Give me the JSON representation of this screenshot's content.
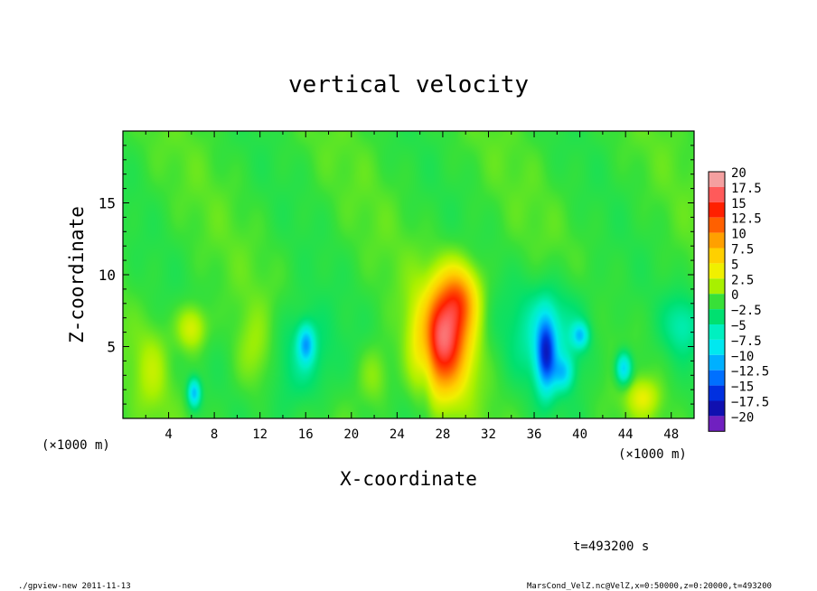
{
  "chart_data": {
    "type": "heatmap",
    "title": "vertical velocity",
    "xlabel": "X-coordinate",
    "ylabel": "Z-coordinate",
    "x_unit_left": "(×1000 m)",
    "x_unit_right": "(×1000 m)",
    "xlim": [
      0,
      50
    ],
    "ylim": [
      0,
      20
    ],
    "x_ticks": [
      4,
      8,
      12,
      16,
      20,
      24,
      28,
      32,
      36,
      40,
      44,
      48
    ],
    "y_ticks": [
      5,
      10,
      15
    ],
    "colorbar": {
      "levels": [
        "20",
        "17.5",
        "15",
        "12.5",
        "10",
        "7.5",
        "5",
        "2.5",
        "0",
        "-2.5",
        "-5",
        "-7.5",
        "-10",
        "-12.5",
        "-15",
        "-17.5",
        "-20"
      ],
      "colors": [
        "#f4a0a0",
        "#ff5a5a",
        "#ff2000",
        "#ff6000",
        "#ffa000",
        "#ffd000",
        "#f0f000",
        "#a8f000",
        "#38e038",
        "#00e070",
        "#00f0c0",
        "#00e8f0",
        "#00b0ff",
        "#0070ff",
        "#0030e0",
        "#1010b0",
        "#7020c0"
      ]
    },
    "features": [
      {
        "x": 28.0,
        "z": 5.5,
        "value": 17,
        "sx": 1.6,
        "sz": 2.6
      },
      {
        "x": 29.5,
        "z": 8.5,
        "value": 8,
        "sx": 1.2,
        "sz": 1.6
      },
      {
        "x": 6.0,
        "z": 6.3,
        "value": 5,
        "sx": 0.9,
        "sz": 1.1
      },
      {
        "x": 6.2,
        "z": 1.8,
        "value": -9,
        "sx": 0.4,
        "sz": 0.7
      },
      {
        "x": 37.0,
        "z": 4.5,
        "value": -12,
        "sx": 0.6,
        "sz": 1.8
      },
      {
        "x": 38.5,
        "z": 3.2,
        "value": -6,
        "sx": 0.6,
        "sz": 0.8
      },
      {
        "x": 43.8,
        "z": 3.5,
        "value": -9,
        "sx": 0.5,
        "sz": 0.8
      },
      {
        "x": 16.0,
        "z": 5.2,
        "value": -8,
        "sx": 0.5,
        "sz": 0.9
      },
      {
        "x": 40.0,
        "z": 5.8,
        "value": -7,
        "sx": 0.5,
        "sz": 0.6
      },
      {
        "x": 15.5,
        "z": 4.0,
        "value": -4,
        "sx": 2.0,
        "sz": 2.5
      },
      {
        "x": 37.5,
        "z": 6.0,
        "value": -5,
        "sx": 2.5,
        "sz": 2.5
      },
      {
        "x": 45.5,
        "z": 1.5,
        "value": 4,
        "sx": 1.0,
        "sz": 0.9
      },
      {
        "x": 11.5,
        "z": 4.5,
        "value": 2.5,
        "sx": 1.2,
        "sz": 2.0
      },
      {
        "x": 2.5,
        "z": 3.5,
        "value": 2.5,
        "sx": 1.0,
        "sz": 2.0
      },
      {
        "x": 22.0,
        "z": 3.0,
        "value": 2.5,
        "sx": 1.0,
        "sz": 1.5
      },
      {
        "x": 49.0,
        "z": 6.5,
        "value": -4,
        "sx": 1.2,
        "sz": 1.5
      },
      {
        "x": 26.5,
        "z": 4.0,
        "value": -2.5,
        "sx": 0.5,
        "sz": 3.0
      }
    ]
  },
  "time_label": "t=493200 s",
  "footer_left": "./gpview-new  2011-11-13",
  "footer_right": "MarsCond_VelZ.nc@VelZ,x=0:50000,z=0:20000,t=493200"
}
